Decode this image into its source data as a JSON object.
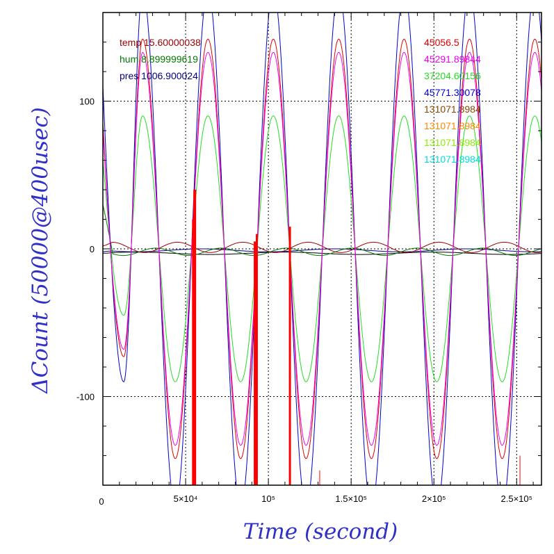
{
  "chart_data": {
    "type": "line",
    "xlabel": "Time (second)",
    "ylabel": "ΔCount (50000@400usec)",
    "xlim": [
      0,
      265000
    ],
    "ylim": [
      -160,
      160
    ],
    "grid": true,
    "x_ticks": [
      {
        "value": 50000,
        "label": "5×10⁴"
      },
      {
        "value": 100000,
        "label": "10⁵"
      },
      {
        "value": 150000,
        "label": "1.5×10⁵"
      },
      {
        "value": 200000,
        "label": "2×10⁵"
      },
      {
        "value": 250000,
        "label": "2.5×10⁵"
      }
    ],
    "x_origin_label": "0",
    "y_ticks": [
      {
        "value": 100,
        "label": "100"
      },
      {
        "value": 0,
        "label": "0"
      },
      {
        "value": -100,
        "label": "-100"
      }
    ],
    "legend_left": [
      {
        "text": "temp 15.60000038",
        "color": "#990000"
      },
      {
        "text": "hum 8.899999619",
        "color": "#007a00"
      },
      {
        "text": "pres 1006.900024",
        "color": "#000080"
      }
    ],
    "legend_right": [
      {
        "text": "45056.5",
        "color": "#dd0000"
      },
      {
        "text": "45291.89844",
        "color": "#ee00ee"
      },
      {
        "text": "37204.60156",
        "color": "#22dd22"
      },
      {
        "text": "45771.30078",
        "color": "#0000cc"
      },
      {
        "text": "131071.8984",
        "color": "#884400"
      },
      {
        "text": "131071.8984",
        "color": "#ff8800"
      },
      {
        "text": "131071.8984",
        "color": "#88ee00"
      },
      {
        "text": "131071.8984",
        "color": "#00dddd"
      }
    ],
    "series": [
      {
        "color": "#0000cc",
        "period": 39500,
        "phase": 24000,
        "amplitude": 175,
        "start": 110,
        "initial_trough": -90
      },
      {
        "color": "#dd0000",
        "period": 39500,
        "phase": 24000,
        "amplitude": 142,
        "start": 85,
        "initial_trough": -73
      },
      {
        "color": "#ee00ee",
        "period": 39500,
        "phase": 24000,
        "amplitude": 133,
        "start": 80,
        "initial_trough": -68
      },
      {
        "color": "#22dd22",
        "period": 39500,
        "phase": 24000,
        "amplitude": 90,
        "start": 60,
        "initial_trough": -45
      },
      {
        "color": "#990000",
        "period": 39500,
        "phase": 45000,
        "amplitude": 3.5,
        "offset": 1,
        "start": 2
      },
      {
        "color": "#007a00",
        "period": 39500,
        "phase": 32000,
        "amplitude": 2.5,
        "offset": -2,
        "start": 30
      },
      {
        "color": "#000080",
        "period": 80000,
        "phase": 60000,
        "amplitude": 1,
        "offset": -1,
        "start": -2
      },
      {
        "color": "#000000",
        "period": 90000,
        "phase": 20000,
        "amplitude": 0.8,
        "offset": -3,
        "start": -3
      }
    ],
    "red_spikes": [
      {
        "x": 14000,
        "top": -160,
        "width": 5
      },
      {
        "x": 54500,
        "top": 20,
        "width": 3
      },
      {
        "x": 55500,
        "top": 40,
        "width": 4
      },
      {
        "x": 92000,
        "top": 5,
        "width": 4
      },
      {
        "x": 93000,
        "top": 10,
        "width": 3
      },
      {
        "x": 113000,
        "top": 15,
        "width": 3
      },
      {
        "x": 131000,
        "top": -150,
        "width": 1
      },
      {
        "x": 252000,
        "top": -140,
        "width": 1
      }
    ]
  }
}
